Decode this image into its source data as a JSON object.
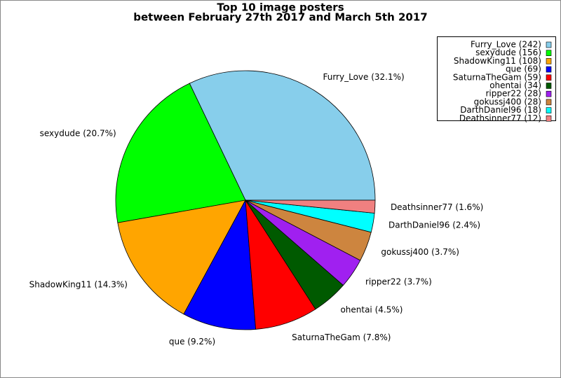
{
  "chart_data": {
    "type": "pie",
    "title": "Top 10 image posters",
    "subtitle": "between February 27th 2017 and March 5th 2017",
    "categories": [
      "Furry_Love",
      "sexydude",
      "ShadowKing11",
      "que",
      "SaturnaTheGam",
      "ohentai",
      "ripper22",
      "gokussj400",
      "DarthDaniel96",
      "Deathsinner77"
    ],
    "values": [
      242,
      156,
      108,
      69,
      59,
      34,
      28,
      28,
      18,
      12
    ],
    "value_labels": [
      "Furry_Love (242)",
      "sexydude (156)",
      "ShadowKing11 (108)",
      "que (69)",
      "SaturnaTheGam (59)",
      "ohentai (34)",
      "ripper22 (28)",
      "gokussj400 (28)",
      "DarthDaniel96 (18)",
      "Deathsinner77 (12)"
    ],
    "percent_labels": [
      "Furry_Love (32.1%)",
      "sexydude (20.7%)",
      "ShadowKing11 (14.3%)",
      "que (9.2%)",
      "SaturnaTheGam (7.8%)",
      "ohentai (4.5%)",
      "ripper22 (3.7%)",
      "gokussj400 (3.7%)",
      "DarthDaniel96 (2.4%)",
      "Deathsinner77 (1.6%)"
    ],
    "colors": [
      "#87ceeb",
      "#00ff00",
      "#ffa500",
      "#0000ff",
      "#ff0000",
      "#005a00",
      "#a020f0",
      "#cd853f",
      "#00ffff",
      "#f08080"
    ],
    "legend": "upper right"
  }
}
